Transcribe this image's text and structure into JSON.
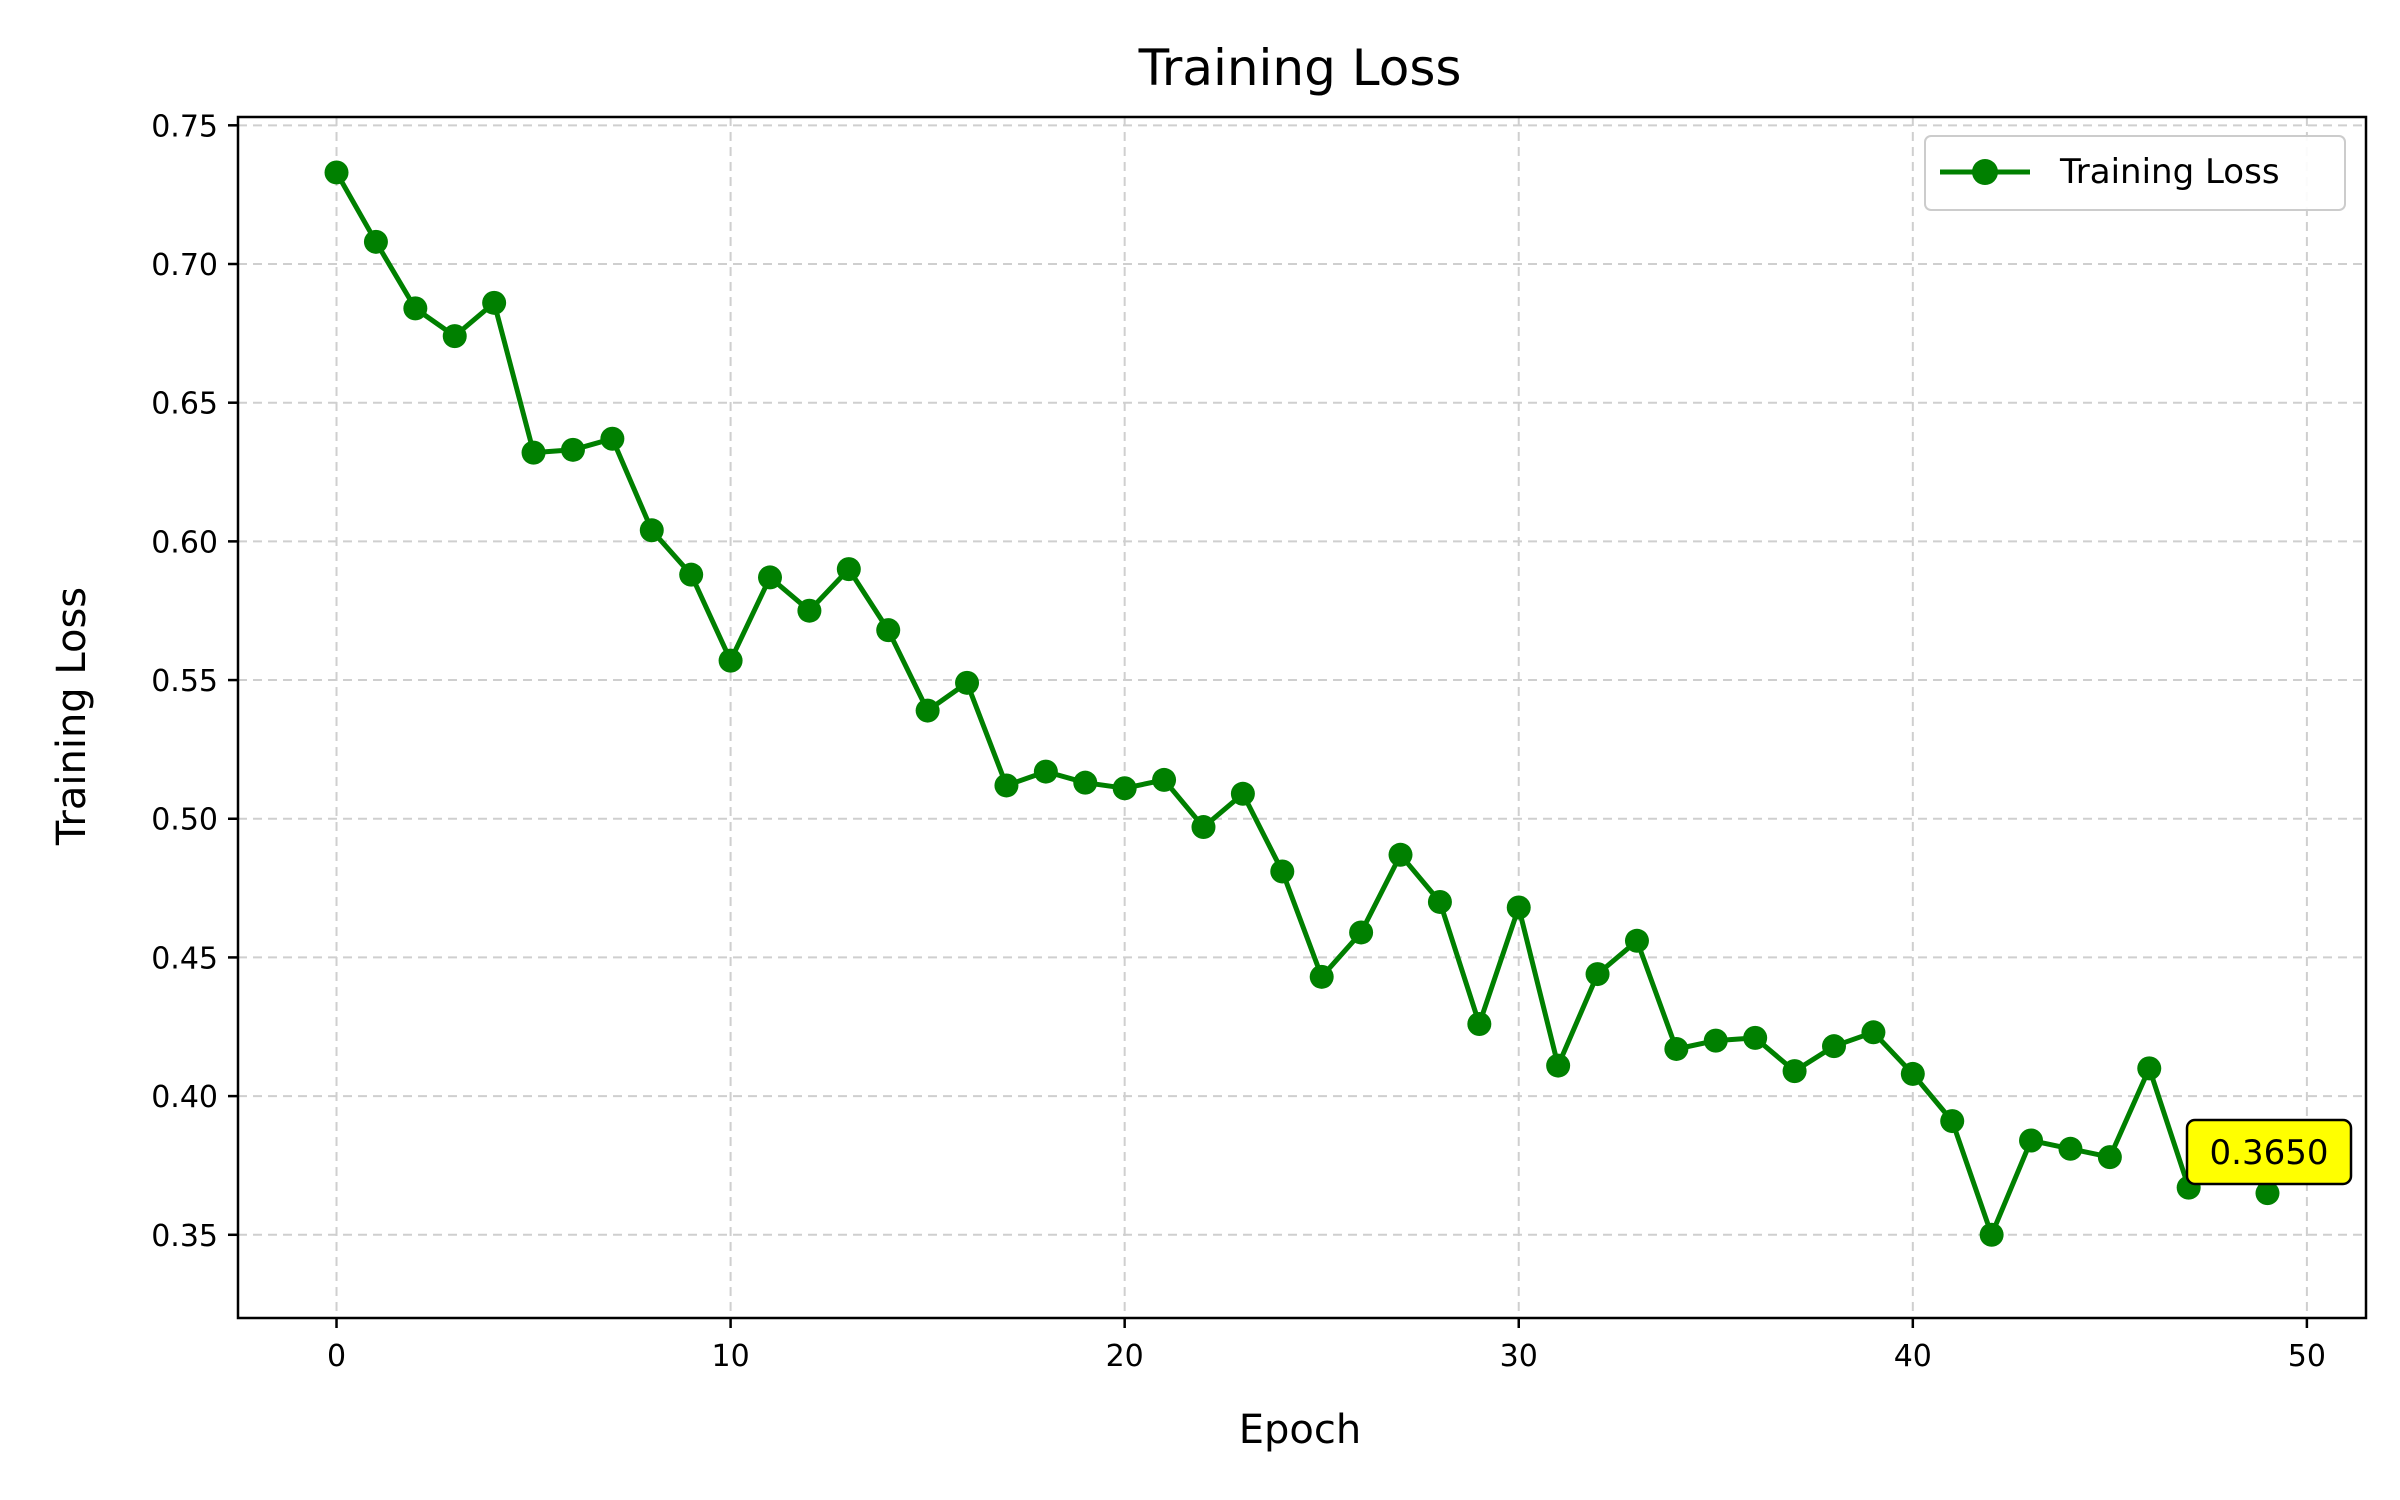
{
  "chart_data": {
    "type": "line",
    "title": "Training Loss",
    "xlabel": "Epoch",
    "ylabel": "Training Loss",
    "xlim": [
      -2.5,
      51.5
    ],
    "ylim": [
      0.32,
      0.753
    ],
    "xticks": [
      0,
      10,
      20,
      30,
      40,
      50
    ],
    "yticks": [
      0.35,
      0.4,
      0.45,
      0.5,
      0.55,
      0.6,
      0.65,
      0.7,
      0.75
    ],
    "xtick_labels": [
      "0",
      "10",
      "20",
      "30",
      "40",
      "50"
    ],
    "ytick_labels": [
      "0.35",
      "0.40",
      "0.45",
      "0.50",
      "0.55",
      "0.60",
      "0.65",
      "0.70",
      "0.75"
    ],
    "grid": true,
    "legend_position": "top-right",
    "color": "#008000",
    "series": [
      {
        "name": "Training Loss",
        "x": [
          0,
          1,
          2,
          3,
          4,
          5,
          6,
          7,
          8,
          9,
          10,
          11,
          12,
          13,
          14,
          15,
          16,
          17,
          18,
          19,
          20,
          21,
          22,
          23,
          24,
          25,
          26,
          27,
          28,
          29,
          30,
          31,
          32,
          33,
          34,
          35,
          36,
          37,
          38,
          39,
          40,
          41,
          42,
          43,
          44,
          45,
          46,
          47,
          48,
          49
        ],
        "y": [
          0.733,
          0.708,
          0.684,
          0.674,
          0.686,
          0.632,
          0.633,
          0.637,
          0.604,
          0.588,
          0.557,
          0.587,
          0.575,
          0.59,
          0.568,
          0.539,
          0.549,
          0.512,
          0.517,
          0.513,
          0.511,
          0.514,
          0.497,
          0.509,
          0.481,
          0.443,
          0.459,
          0.487,
          0.47,
          0.426,
          0.468,
          0.411,
          0.444,
          0.456,
          0.417,
          0.42,
          0.421,
          0.409,
          0.418,
          0.423,
          0.408,
          0.391,
          0.35,
          0.384,
          0.381,
          0.378,
          0.41,
          0.367,
          0.383,
          0.365
        ]
      }
    ],
    "annotations": [
      {
        "text": "0.3650",
        "x": 49,
        "y": 0.365,
        "background": "#ffff00"
      }
    ]
  }
}
